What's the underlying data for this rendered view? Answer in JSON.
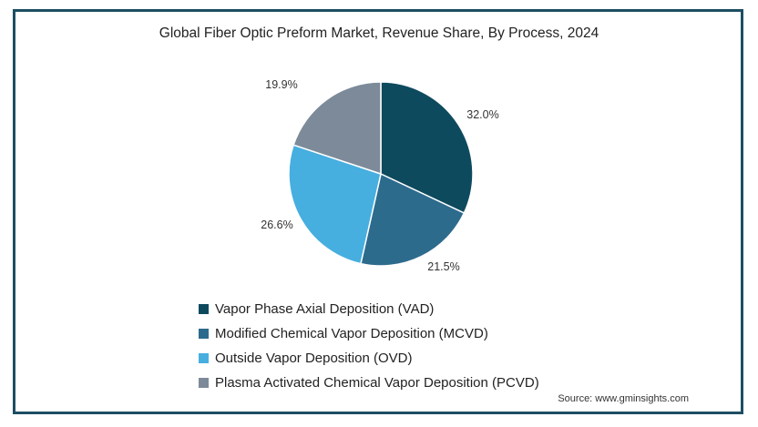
{
  "chart_data": {
    "type": "pie",
    "title": "Global Fiber Optic Preform Market, Revenue Share, By Process, 2024",
    "slices": [
      {
        "label": "Vapor Phase Axial Deposition (VAD)",
        "value": 32.0,
        "display": "32.0%",
        "color": "#0e4a5e"
      },
      {
        "label": "Modified Chemical Vapor Deposition (MCVD)",
        "value": 21.5,
        "display": "21.5%",
        "color": "#2d6b8d"
      },
      {
        "label": "Outside Vapor Deposition (OVD)",
        "value": 26.6,
        "display": "26.6%",
        "color": "#47aee0"
      },
      {
        "label": "Plasma Activated Chemical Vapor Deposition (PCVD)",
        "value": 19.9,
        "display": "19.9%",
        "color": "#7d8a99"
      }
    ],
    "legend_position": "bottom",
    "source": "Source: www.gminsights.com"
  }
}
